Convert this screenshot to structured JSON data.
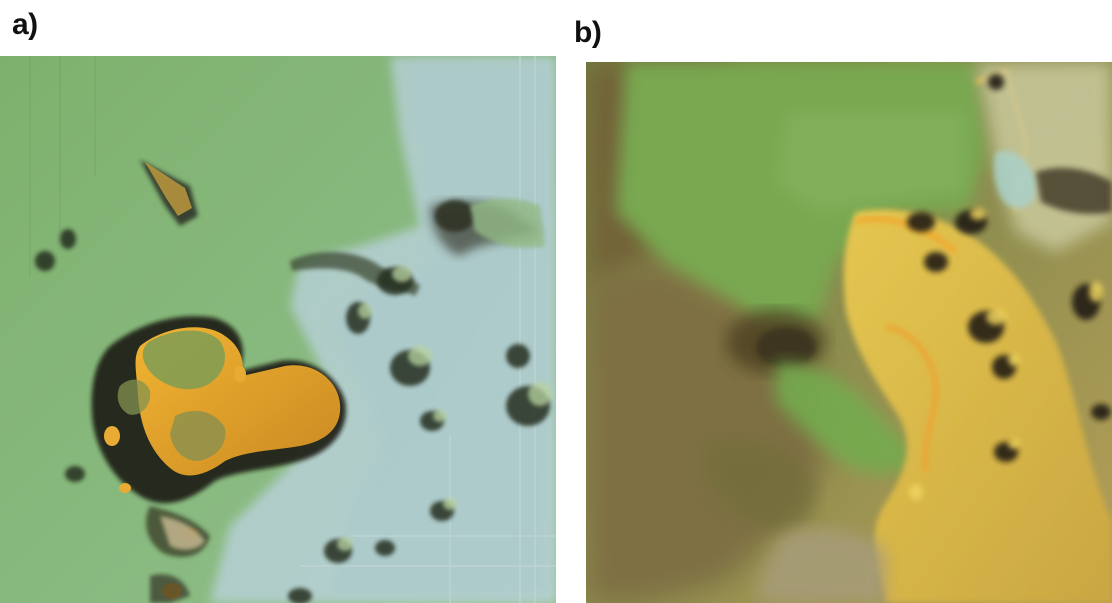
{
  "panels": {
    "a": {
      "label": "a)",
      "image": "shaded-relief-terrain-map-green-blue"
    },
    "b": {
      "label": "b)",
      "image": "shaded-relief-terrain-map-green-yellow"
    }
  },
  "colors": {
    "lowland_green": "#7db36a",
    "terrace_blue_grey": "#9fc0c4",
    "plateau_orange": "#e0a428",
    "dark_shadow": "#1e1a10",
    "sand_yellow": "#e7c845",
    "olive_brown": "#7a6c3e"
  }
}
